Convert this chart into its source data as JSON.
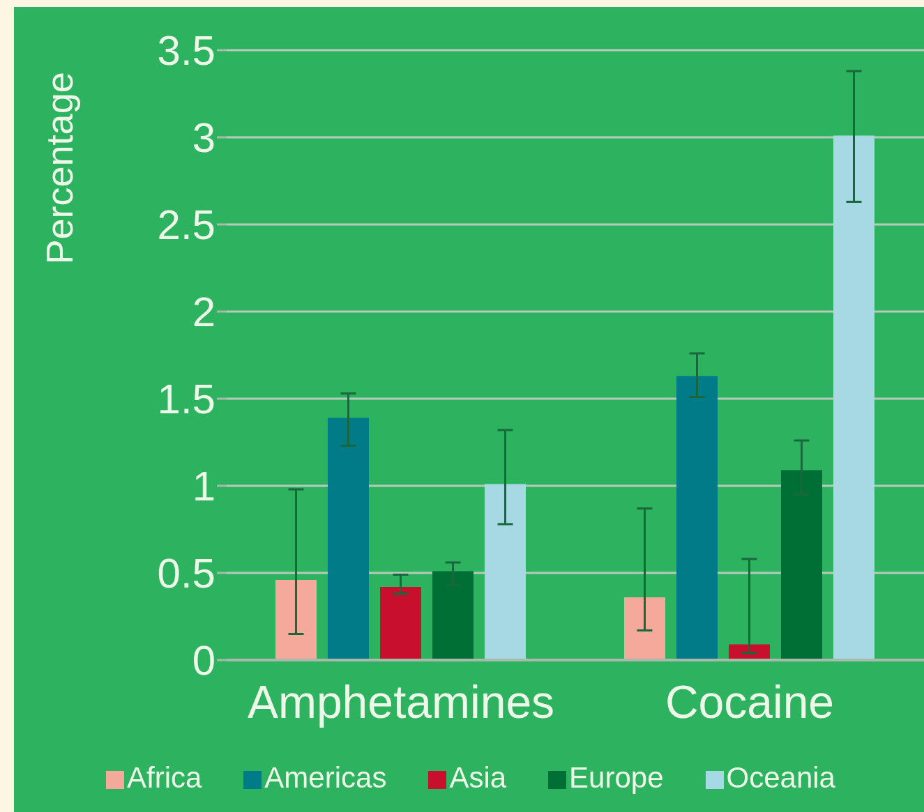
{
  "chart_data": {
    "type": "bar",
    "ylabel": "Percentage",
    "categories": [
      "Amphetamines",
      "Cocaine"
    ],
    "series": [
      {
        "name": "Africa",
        "color": "#f4a99b",
        "values": [
          0.46,
          0.36
        ],
        "errors": [
          [
            0.15,
            0.98
          ],
          [
            0.17,
            0.87
          ]
        ]
      },
      {
        "name": "Americas",
        "color": "#007b87",
        "values": [
          1.39,
          1.63
        ],
        "errors": [
          [
            1.23,
            1.53
          ],
          [
            1.51,
            1.76
          ]
        ]
      },
      {
        "name": "Asia",
        "color": "#c8102e",
        "values": [
          0.42,
          0.09
        ],
        "errors": [
          [
            0.38,
            0.49
          ],
          [
            0.04,
            0.58
          ]
        ]
      },
      {
        "name": "Europe",
        "color": "#006f35",
        "values": [
          0.51,
          1.09
        ],
        "errors": [
          [
            0.43,
            0.56
          ],
          [
            0.95,
            1.26
          ]
        ]
      },
      {
        "name": "Oceania",
        "color": "#a6d9e3",
        "values": [
          1.01,
          3.01
        ],
        "errors": [
          [
            0.78,
            1.32
          ],
          [
            2.63,
            3.38
          ]
        ]
      }
    ],
    "ylim": [
      0,
      3.5
    ],
    "yticks": [
      0,
      0.5,
      1,
      1.5,
      2,
      2.5,
      3,
      3.5
    ],
    "grid": "y",
    "legend": "bottom"
  }
}
